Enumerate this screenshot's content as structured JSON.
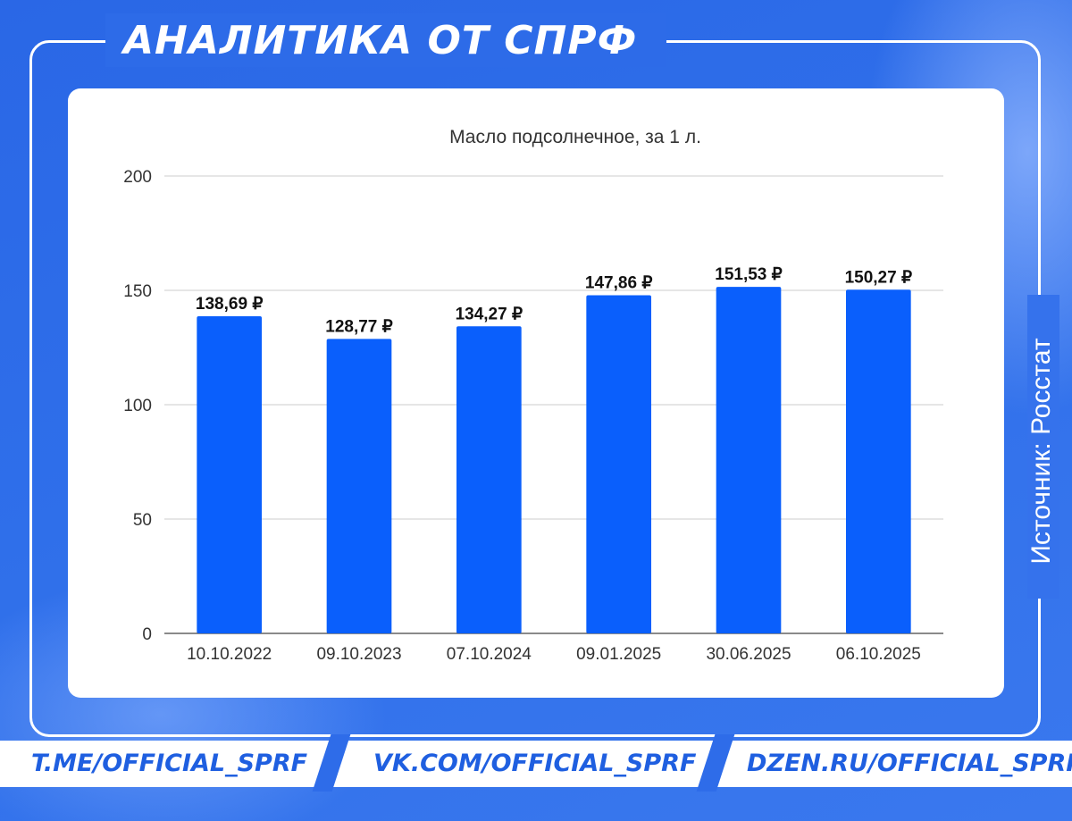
{
  "header": {
    "title": "АНАЛИТИКА ОТ СПРФ"
  },
  "source_label": "Источник: Росстат",
  "footer": {
    "links": [
      "T.ME/OFFICIAL_SPRF",
      "VK.COM/OFFICIAL_SPRF",
      "DZEN.RU/OFFICIAL_SPRF"
    ]
  },
  "colors": {
    "background": "#2f6fea",
    "bar": "#0a5ffc",
    "link": "#1f5fe0",
    "grid": "#cccccc"
  },
  "chart_data": {
    "type": "bar",
    "title": "Масло подсолнечное, за 1 л.",
    "xlabel": "",
    "ylabel": "",
    "categories": [
      "10.10.2022",
      "09.10.2023",
      "07.10.2024",
      "09.01.2025",
      "30.06.2025",
      "06.10.2025"
    ],
    "values": [
      138.69,
      128.77,
      134.27,
      147.86,
      151.53,
      150.27
    ],
    "data_labels": [
      "138,69 ₽",
      "128,77 ₽",
      "134,27 ₽",
      "147,86 ₽",
      "151,53 ₽",
      "150,27 ₽"
    ],
    "ylim": [
      0,
      200
    ],
    "yticks": [
      0,
      50,
      100,
      150,
      200
    ],
    "grid": true,
    "legend": "none"
  }
}
